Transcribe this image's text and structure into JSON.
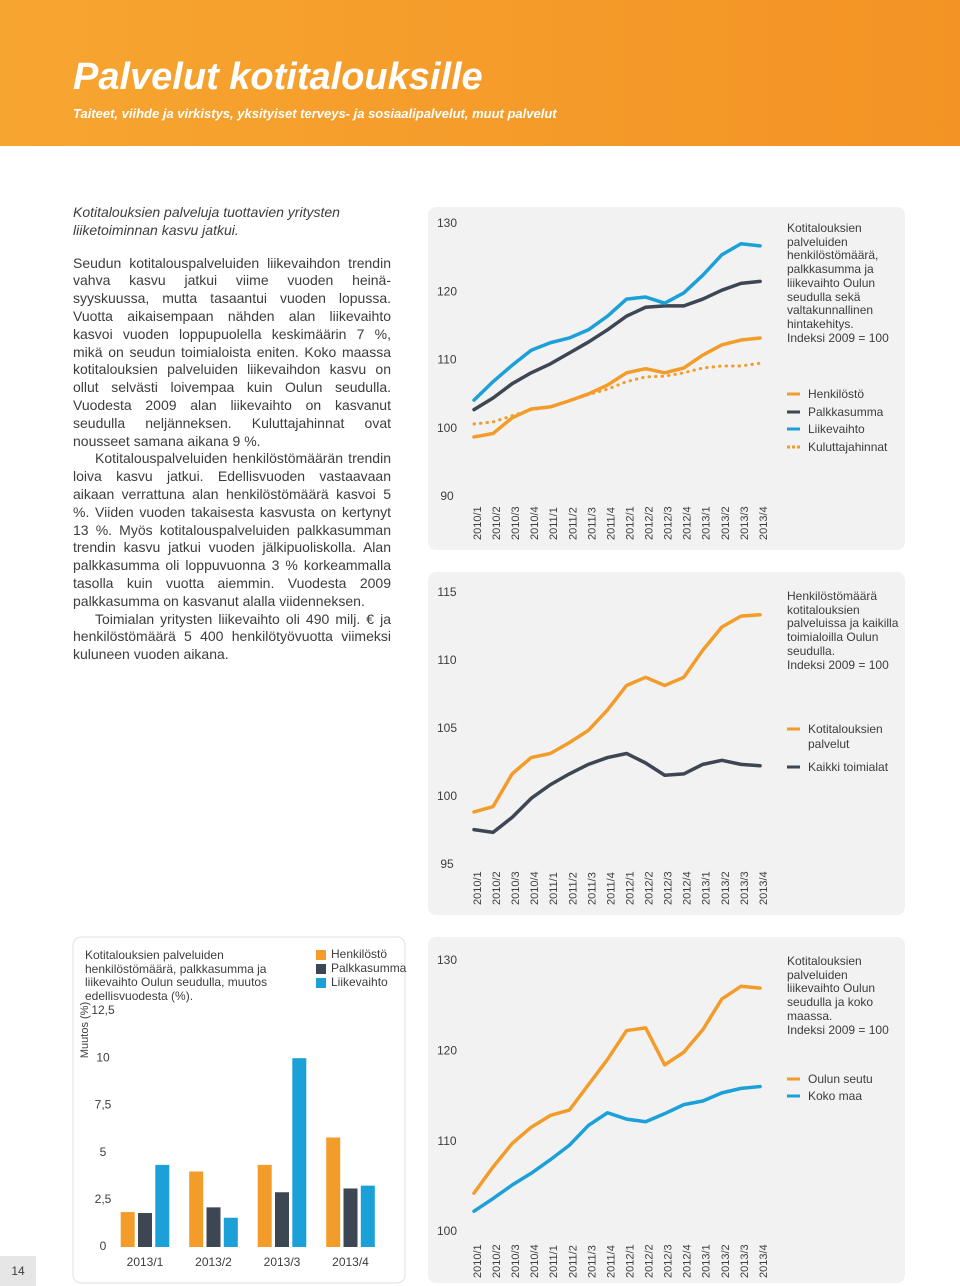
{
  "header": {
    "title": "Palvelut kotitalouksille",
    "subtitle": "Taiteet, viihde ja virkistys, yksityiset terveys- ja sosiaalipalvelut, muut palvelut"
  },
  "body": {
    "lead": "Kotitalouksien palveluja tuottavien yritysten liiketoiminnan kasvu jatkui.",
    "paragraphs": [
      "Seudun kotitalouspalveluiden liikevaihdon trendin vahva kasvu jatkui viime vuoden heinä-syyskuussa, mutta tasaantui vuoden lopussa. Vuotta aikaisempaan nähden alan liikevaihto kasvoi vuoden loppupuolella keskimäärin 7 %, mikä on seudun toimialoista eniten. Koko maassa kotitalouksien palveluiden liikevaihdon kasvu on ollut selvästi loivempaa kuin Oulun seudulla. Vuodesta 2009 alan liikevaihto on kasvanut seudulla neljänneksen. Kuluttajahinnat ovat nousseet samana aikana 9 %.",
      "Kotitalouspalveluiden henkilöstömäärän trendin loiva kasvu jatkui. Edellisvuoden vastaavaan aikaan verrattuna alan henkilöstömäärä kasvoi 5 %. Viiden vuoden takaisesta kasvusta on kertynyt 13 %. Myös kotitalouspalveluiden palkkasumman trendin kasvu jatkui vuoden jälkipuoliskolla. Alan palkkasumma oli loppuvuonna 3 % korkeammalla tasolla kuin vuotta aiemmin. Vuodesta 2009 palkkasumma on kasvanut alalla viidenneksen.",
      "Toimialan yritysten liikevaihto oli 490 milj. € ja henkilöstömäärä 5 400 henkilötyövuotta viimeksi kuluneen vuoden aikana."
    ]
  },
  "page_number": "14",
  "chart_data": [
    {
      "type": "line",
      "notes": [
        "Kotitalouksien palveluiden henkilöstömäärä, palkkasumma ja liikevaihto Oulun seudulla sekä valtakunnallinen hintakehitys.",
        "Indeksi 2009 = 100"
      ],
      "categories": [
        "2010/1",
        "2010/2",
        "2010/3",
        "2010/4",
        "2011/1",
        "2011/2",
        "2011/3",
        "2011/4",
        "2012/1",
        "2012/2",
        "2012/3",
        "2012/4",
        "2013/1",
        "2013/2",
        "2013/3",
        "2013/4"
      ],
      "ylim": [
        90,
        130
      ],
      "yticks": [
        90,
        100,
        110,
        120,
        130
      ],
      "series": [
        {
          "name": "Henkilöstö",
          "color": "#f39c2a",
          "values": [
            98.8,
            99.3,
            101.6,
            102.9,
            103.2,
            104.1,
            105.1,
            106.4,
            108.2,
            108.8,
            108.2,
            108.9,
            110.8,
            112.3,
            113,
            113.3
          ]
        },
        {
          "name": "Palkkasumma",
          "color": "#3d4653",
          "values": [
            102.8,
            104.5,
            106.6,
            108.2,
            109.5,
            111.1,
            112.7,
            114.5,
            116.5,
            117.8,
            118,
            118,
            119,
            120.3,
            121.3,
            121.6
          ]
        },
        {
          "name": "Liikevaihto",
          "color": "#1ba0d8",
          "values": [
            104.2,
            106.9,
            109.3,
            111.5,
            112.6,
            113.3,
            114.5,
            116.5,
            119,
            119.3,
            118.4,
            119.9,
            122.5,
            125.5,
            127.1,
            126.8
          ]
        },
        {
          "name": "Kuluttajahinnat",
          "color": "#f39c2a",
          "dotted": true,
          "values": [
            100.7,
            101,
            101.9,
            102.8,
            103.2,
            104.1,
            105,
            105.8,
            106.9,
            107.6,
            107.7,
            108.2,
            108.9,
            109.2,
            109.2,
            109.6
          ]
        }
      ]
    },
    {
      "type": "line",
      "notes": [
        "Henkilöstömäärä kotitalouksien palveluissa ja kaikilla toimialoilla Oulun seudulla.",
        "Indeksi 2009  = 100"
      ],
      "categories": [
        "2010/1",
        "2010/2",
        "2010/3",
        "2010/4",
        "2011/1",
        "2011/2",
        "2011/3",
        "2011/4",
        "2012/1",
        "2012/2",
        "2012/3",
        "2012/4",
        "2013/1",
        "2013/2",
        "2013/3",
        "2013/4"
      ],
      "ylim": [
        95,
        115
      ],
      "yticks": [
        95,
        100,
        105,
        110,
        115
      ],
      "series": [
        {
          "name": "Kotitalouksien palvelut",
          "color": "#f39c2a",
          "values": [
            98.9,
            99.3,
            101.7,
            102.9,
            103.2,
            104,
            104.9,
            106.4,
            108.2,
            108.8,
            108.2,
            108.8,
            110.8,
            112.5,
            113.3,
            113.4
          ]
        },
        {
          "name": "Kaikki toimialat",
          "color": "#3d4653",
          "values": [
            97.6,
            97.4,
            98.5,
            99.9,
            100.9,
            101.7,
            102.4,
            102.9,
            103.2,
            102.5,
            101.6,
            101.7,
            102.4,
            102.7,
            102.4,
            102.3
          ]
        }
      ]
    },
    {
      "type": "bar",
      "title": "Kotitalouksien palveluiden henkilöstömäärä, palkkasumma ja liikevaihto Oulun seudulla, muutos edellisvuodesta (%).",
      "ylabel": "Muutos (%)",
      "categories": [
        "2013/1",
        "2013/2",
        "2013/3",
        "2013/4"
      ],
      "ylim": [
        0,
        12.5
      ],
      "yticks": [
        0,
        {
          "value": 2.5,
          "label": "2,5"
        },
        5,
        {
          "value": 7.5,
          "label": "7,5"
        },
        10,
        {
          "value": 12.5,
          "label": "12,5"
        }
      ],
      "series": [
        {
          "name": "Henkilöstö",
          "color": "#f39c2a",
          "values": [
            1.85,
            4.0,
            4.35,
            5.8
          ]
        },
        {
          "name": "Palkkasumma",
          "color": "#3d4653",
          "values": [
            1.8,
            2.1,
            2.9,
            3.1
          ]
        },
        {
          "name": "Liikevaihto",
          "color": "#1ba0d8",
          "values": [
            4.35,
            1.55,
            10,
            3.25
          ]
        }
      ]
    },
    {
      "type": "line",
      "notes": [
        "Kotitalouksien palveluiden liikevaihto Oulun seudulla ja koko maassa.",
        "Indeksi 2009 = 100"
      ],
      "categories": [
        "2010/1",
        "2010/2",
        "2010/3",
        "2010/4",
        "2011/1",
        "2011/2",
        "2011/3",
        "2011/4",
        "2012/1",
        "2012/2",
        "2012/3",
        "2012/4",
        "2013/1",
        "2013/2",
        "2013/3",
        "2013/4"
      ],
      "ylim": [
        100,
        130
      ],
      "yticks": [
        100,
        110,
        120,
        130
      ],
      "series": [
        {
          "name": "Oulun seutu",
          "color": "#f39c2a",
          "values": [
            104.3,
            107.2,
            109.8,
            111.6,
            112.9,
            113.5,
            116.3,
            119.1,
            122.3,
            122.6,
            118.5,
            119.9,
            122.4,
            125.8,
            127.2,
            127
          ]
        },
        {
          "name": "Koko maa",
          "color": "#1ba0d8",
          "values": [
            102.3,
            103.7,
            105.2,
            106.5,
            108,
            109.6,
            111.8,
            113.2,
            112.5,
            112.2,
            113.1,
            114.1,
            114.5,
            115.4,
            115.9,
            116.1
          ]
        }
      ]
    }
  ]
}
